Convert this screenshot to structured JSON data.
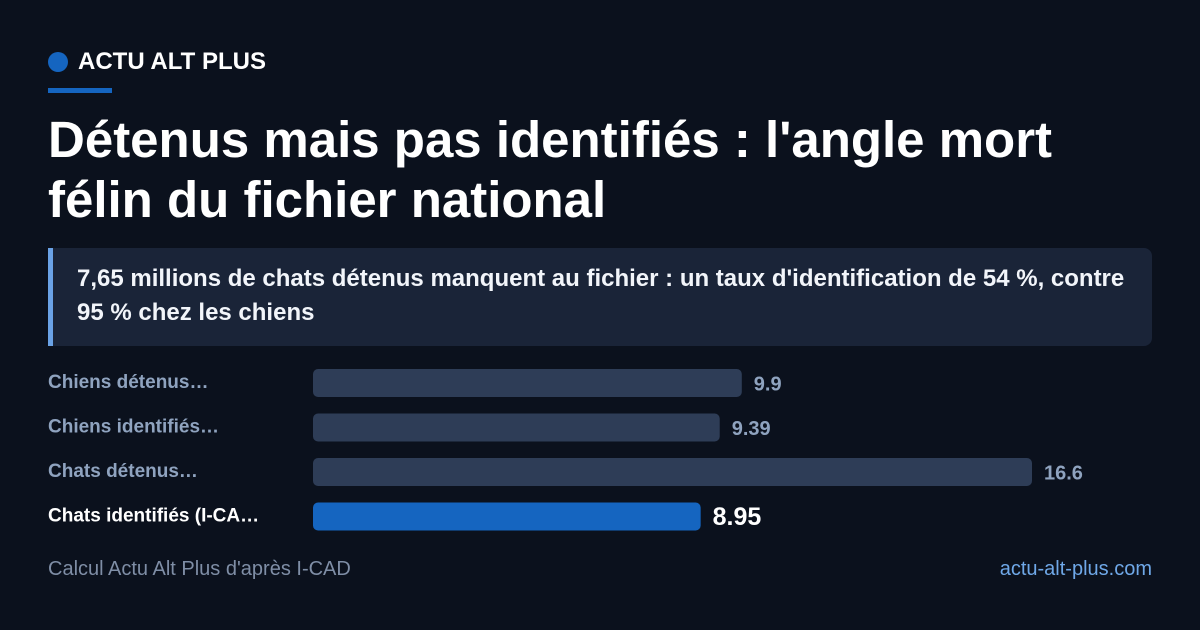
{
  "header": {
    "brand": "ACTU ALT PLUS"
  },
  "chart_data": {
    "type": "bar",
    "orientation": "horizontal",
    "title": "Détenus mais pas identifiés : l'angle mort félin du fichier national",
    "subtitle": "7,65 millions de chats détenus manquent au fichier : un taux d'identification de 54 %, contre 95 % chez les chiens",
    "categories": [
      "Chiens détenus…",
      "Chiens identifiés…",
      "Chats détenus…",
      "Chats identifiés (I-CA…"
    ],
    "values": [
      9.9,
      9.39,
      16.6,
      8.95
    ],
    "color": "#2e3d57",
    "highlight_color": "#1565c0",
    "highlight_index": 3
  },
  "footer": {
    "source": "Calcul Actu Alt Plus d'après I-CAD",
    "site": "actu-alt-plus.com"
  }
}
